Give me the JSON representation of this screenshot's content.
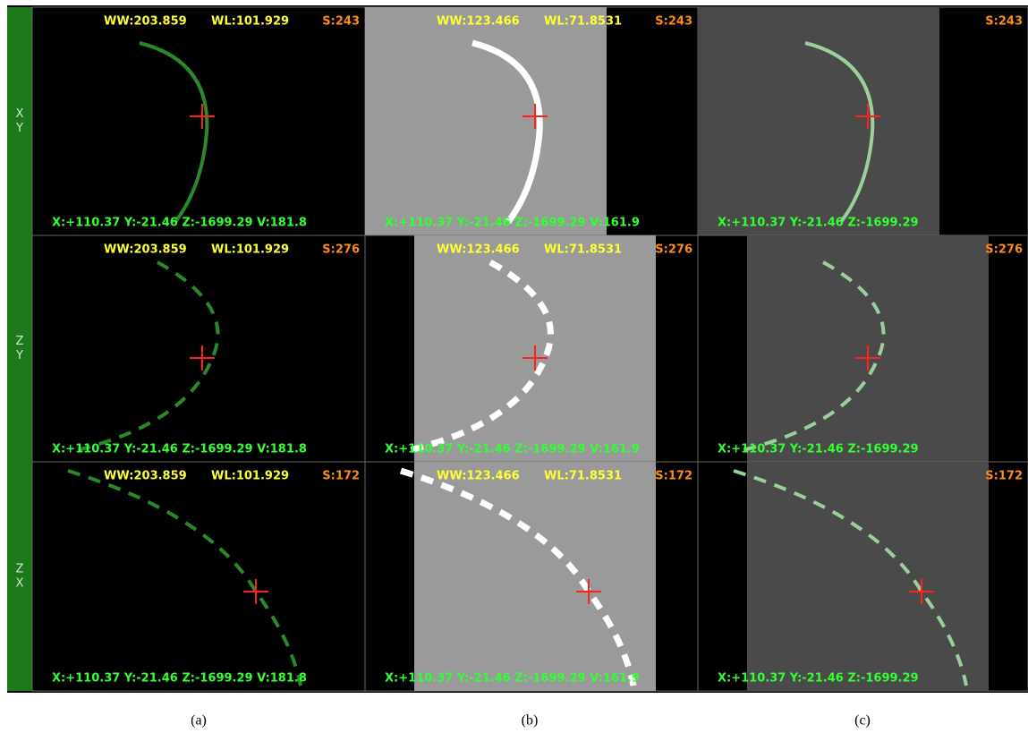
{
  "side_labels": [
    [
      "X",
      "Y"
    ],
    [
      "Z",
      "Y"
    ],
    [
      "Z",
      "X"
    ]
  ],
  "panels": {
    "rows": [
      {
        "cells": [
          {
            "ww": "WW:203.859",
            "wl": "WL:101.929",
            "s": "S:243",
            "coords": "X:+110.37 Y:-21.46 Z:-1699.29 V:181.8"
          },
          {
            "ww": "WW:123.466",
            "wl": "WL:71.8531",
            "s": "S:243",
            "coords": "X:+110.37 Y:-21.46 Z:-1699.29 V:161.9"
          },
          {
            "s": "S:243",
            "coords": "X:+110.37 Y:-21.46 Z:-1699.29"
          }
        ]
      },
      {
        "cells": [
          {
            "ww": "WW:203.859",
            "wl": "WL:101.929",
            "s": "S:276",
            "coords": "X:+110.37 Y:-21.46 Z:-1699.29 V:181.8"
          },
          {
            "ww": "WW:123.466",
            "wl": "WL:71.8531",
            "s": "S:276",
            "coords": "X:+110.37 Y:-21.46 Z:-1699.29 V:161.9"
          },
          {
            "s": "S:276",
            "coords": "X:+110.37 Y:-21.46 Z:-1699.29"
          }
        ]
      },
      {
        "cells": [
          {
            "ww": "WW:203.859",
            "wl": "WL:101.929",
            "s": "S:172",
            "coords": "X:+110.37 Y:-21.46 Z:-1699.29 V:181.8"
          },
          {
            "ww": "WW:123.466",
            "wl": "WL:71.8531",
            "s": "S:172",
            "coords": "X:+110.37 Y:-21.46 Z:-1699.29 V:161.9"
          },
          {
            "s": "S:172",
            "coords": "X:+110.37 Y:-21.46 Z:-1699.29"
          }
        ]
      }
    ]
  },
  "captions": [
    "(a)",
    "(b)",
    "(c)"
  ]
}
